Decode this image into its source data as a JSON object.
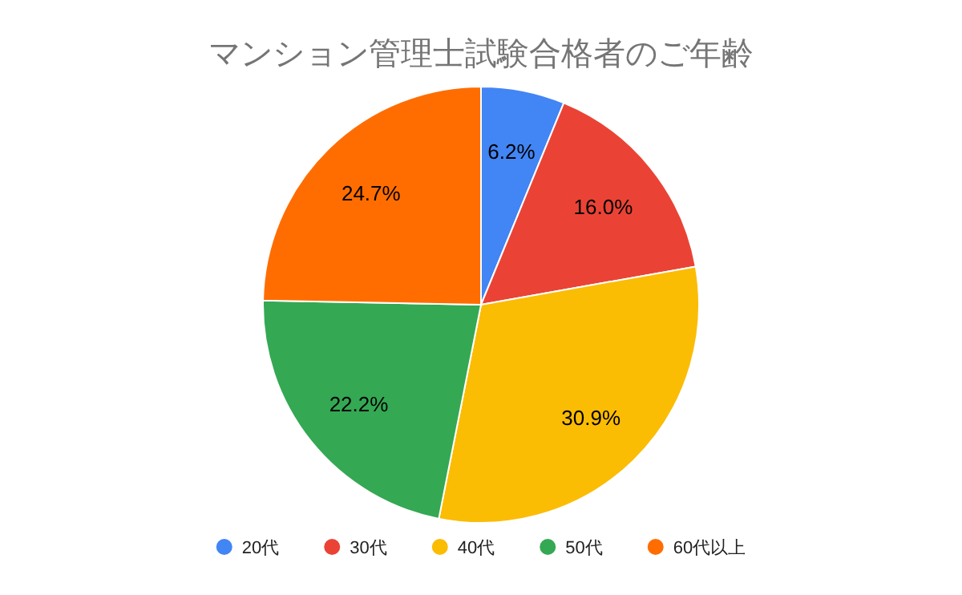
{
  "chart_data": {
    "type": "pie",
    "title": "マンション管理士試験合格者のご年齢",
    "categories": [
      "20代",
      "30代",
      "40代",
      "50代",
      "60代以上"
    ],
    "values": [
      6.2,
      16.0,
      30.9,
      22.2,
      24.7
    ],
    "value_labels": [
      "6.2%",
      "16.0%",
      "30.9%",
      "22.2%",
      "24.7%"
    ],
    "colors": [
      "#4285f4",
      "#ea4335",
      "#fbbc04",
      "#34a853",
      "#ff6d01"
    ],
    "legend": "bottom"
  }
}
